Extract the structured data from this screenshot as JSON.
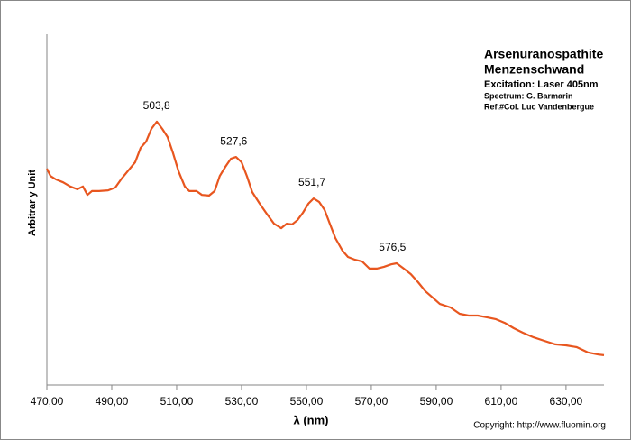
{
  "chart_data": {
    "type": "line",
    "title": "Arsenuranospathite",
    "subtitle": "Menzenschwand",
    "info": [
      "Excitation:  Laser 405nm",
      "Spectrum: G. Barmarin",
      "Ref.#Col. Luc Vandenbergue"
    ],
    "credit": "Copyright: http://www.fluomin.org",
    "x_label": "λ (nm)",
    "y_label": "Arbitrar y Unit",
    "xlim": [
      470,
      641.7
    ],
    "ylim": [
      0,
      100
    ],
    "xticks": [
      {
        "value": 470,
        "label": "470,00"
      },
      {
        "value": 490,
        "label": "490,00"
      },
      {
        "value": 510,
        "label": "510,00"
      },
      {
        "value": 530,
        "label": "530,00"
      },
      {
        "value": 550,
        "label": "550,00"
      },
      {
        "value": 570,
        "label": "570,00"
      },
      {
        "value": 590,
        "label": "590,00"
      },
      {
        "value": 610,
        "label": "610,00"
      },
      {
        "value": 630,
        "label": "630,00"
      }
    ],
    "x": [
      470,
      471.1,
      472.8,
      475,
      477.2,
      479.4,
      481.1,
      482.5,
      483.9,
      486.1,
      488.9,
      491.1,
      493.1,
      495.3,
      497.2,
      498.9,
      500.6,
      502.2,
      503.9,
      505.6,
      507.2,
      508.9,
      510.6,
      512.5,
      513.9,
      516.1,
      517.8,
      520,
      521.7,
      523.3,
      525,
      526.7,
      528.3,
      530,
      531.7,
      533.3,
      535.6,
      537.8,
      540,
      542.2,
      543.9,
      545.6,
      547.2,
      548.9,
      550.6,
      552.2,
      553.9,
      555.6,
      557.2,
      558.9,
      561.1,
      562.8,
      565,
      567.2,
      569.4,
      571.7,
      573.9,
      576.1,
      577.8,
      580,
      582.2,
      584.4,
      586.7,
      588.9,
      591.1,
      594.4,
      597.2,
      600,
      602.8,
      605.6,
      608.3,
      611.1,
      613.9,
      616.7,
      620,
      623.3,
      626.7,
      630,
      633.3,
      636.7,
      640,
      641.7
    ],
    "series": [
      {
        "color": "#e8561f",
        "values": [
          61.7,
          59.6,
          58.6,
          57.8,
          56.6,
          55.8,
          56.6,
          54.2,
          55.3,
          55.3,
          55.5,
          56.3,
          58.9,
          61.4,
          63.5,
          67.6,
          69.4,
          73.0,
          75.1,
          73.0,
          70.7,
          66.1,
          60.9,
          56.6,
          55.3,
          55.3,
          54.2,
          54.0,
          55.3,
          59.6,
          62.2,
          64.5,
          65.0,
          63.5,
          59.4,
          55.0,
          51.7,
          48.8,
          46.0,
          44.7,
          46.0,
          45.8,
          47.0,
          49.1,
          51.7,
          53.2,
          52.2,
          49.9,
          46.0,
          41.9,
          38.3,
          36.5,
          35.7,
          35.2,
          33.2,
          33.2,
          33.7,
          34.4,
          34.7,
          33.2,
          31.6,
          29.3,
          26.7,
          24.9,
          23.1,
          22.1,
          20.3,
          19.8,
          19.8,
          19.3,
          18.8,
          17.7,
          16.2,
          14.9,
          13.6,
          12.6,
          11.6,
          11.3,
          10.8,
          9.3,
          8.7,
          8.5
        ]
      }
    ],
    "annotations": [
      {
        "x": 503.8,
        "y": 75.1,
        "text": "503,8"
      },
      {
        "x": 527.6,
        "y": 65.0,
        "text": "527,6"
      },
      {
        "x": 551.7,
        "y": 53.2,
        "text": "551,7"
      },
      {
        "x": 576.5,
        "y": 34.7,
        "text": "576,5"
      }
    ]
  }
}
